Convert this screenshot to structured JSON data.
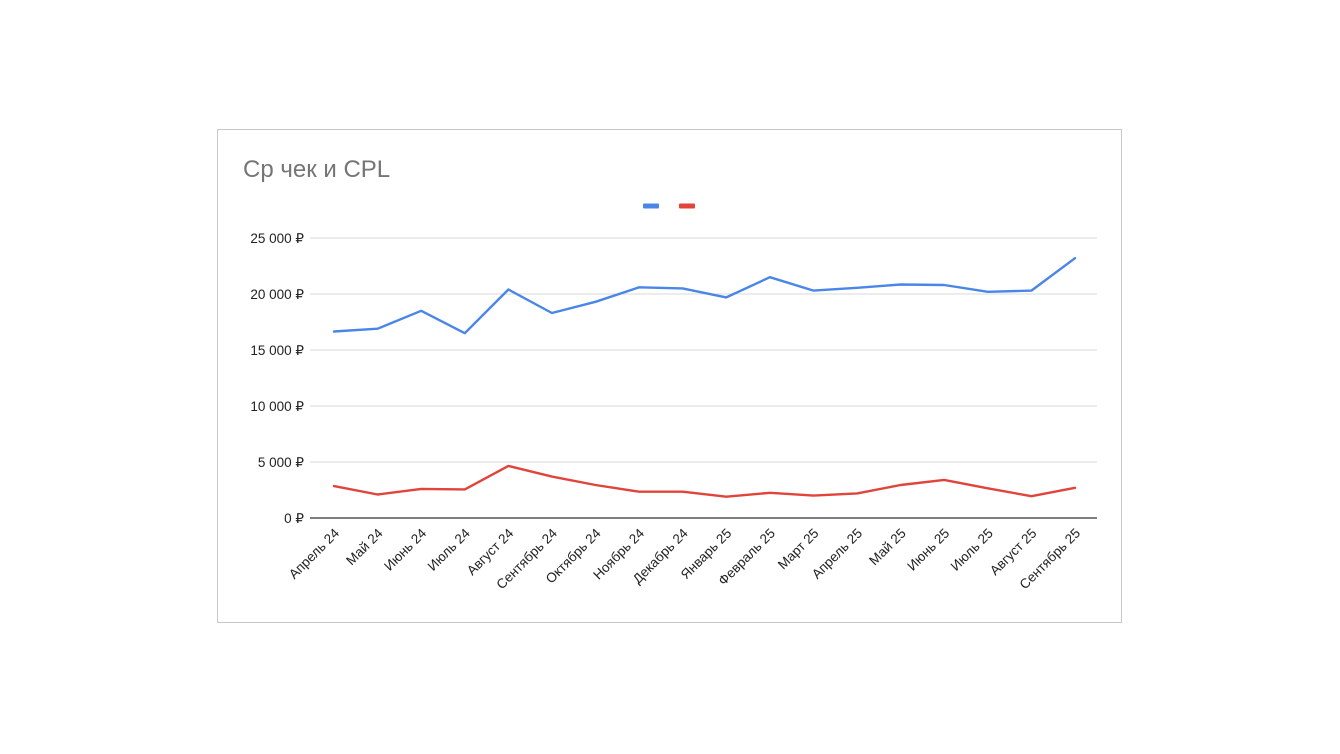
{
  "chart_data": {
    "type": "line",
    "title": "Ср чек и CPL",
    "xlabel": "",
    "ylabel": "",
    "legend_position": "top",
    "grid": true,
    "ylim": [
      0,
      25000
    ],
    "yticks": [
      "0 ₽",
      "5 000 ₽",
      "10 000 ₽",
      "15 000 ₽",
      "20 000 ₽",
      "25 000 ₽"
    ],
    "ytick_values": [
      0,
      5000,
      10000,
      15000,
      20000,
      25000
    ],
    "categories": [
      "Апрель 24",
      "Май 24",
      "Июнь 24",
      "Июль 24",
      "Август 24",
      "Сентябрь 24",
      "Октябрь 24",
      "Ноябрь 24",
      "Декабрь 24",
      "Январь 25",
      "Февраль 25",
      "Март 25",
      "Апрель 25",
      "Май 25",
      "Июнь 25",
      "Июль 25",
      "Август 25",
      "Сентябрь 25"
    ],
    "series": [
      {
        "color": "#4a86e8",
        "values": [
          16650,
          16900,
          18500,
          16500,
          20400,
          18300,
          19300,
          20600,
          20500,
          19700,
          21500,
          20300,
          20550,
          20850,
          20800,
          20200,
          20300,
          23200
        ]
      },
      {
        "color": "#e0443a",
        "values": [
          2850,
          2100,
          2600,
          2550,
          4650,
          3700,
          2950,
          2350,
          2350,
          1900,
          2250,
          2000,
          2200,
          2950,
          3400,
          2650,
          1950,
          2700
        ]
      }
    ]
  }
}
